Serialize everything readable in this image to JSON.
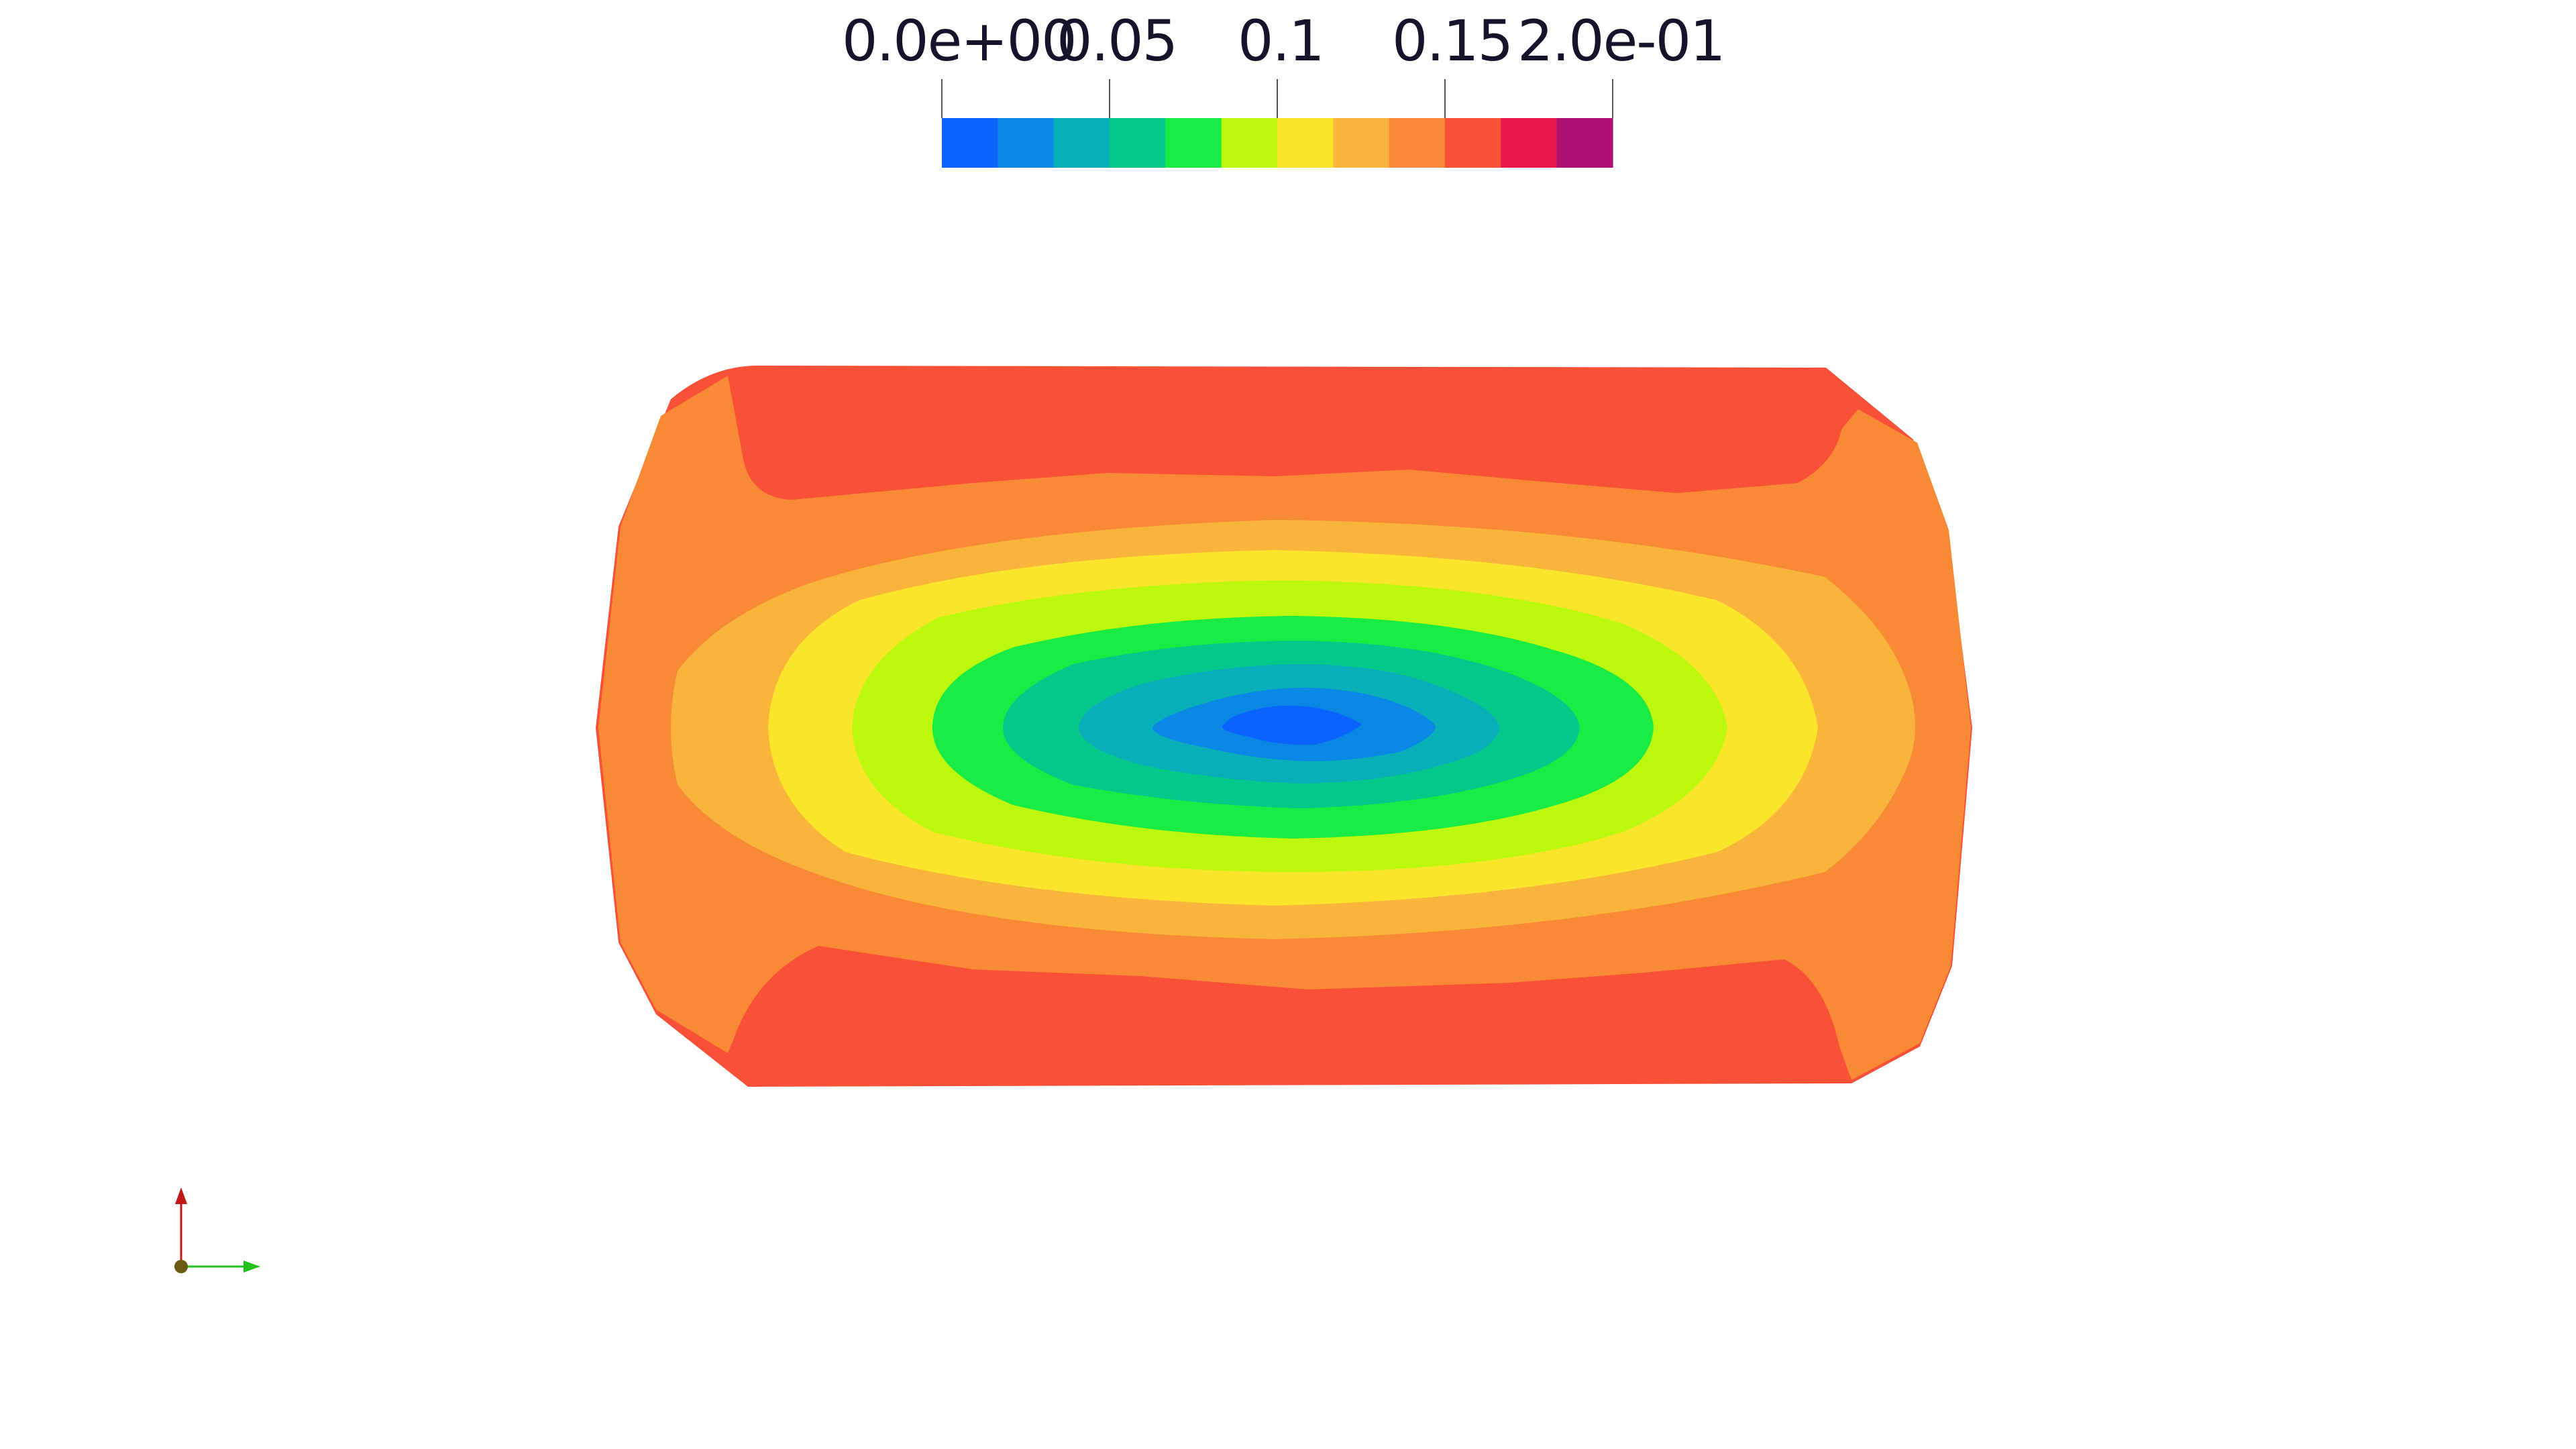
{
  "colorbar": {
    "tick_labels": [
      "0.0e+00",
      "0.05",
      "0.1",
      "0.15",
      "2.0e-01"
    ],
    "colors": [
      "#0a63ff",
      "#0a87e3",
      "#08aeb8",
      "#05c98a",
      "#17eb44",
      "#bcf70e",
      "#fbe52a",
      "#f8b43b",
      "#f88a36",
      "#f95138",
      "#e8194a",
      "#ad1070"
    ]
  },
  "field": {
    "contour_colors": [
      "#f95138",
      "#f88a36",
      "#f8b43b",
      "#fbe52a",
      "#bcf70e",
      "#17eb44",
      "#05c98a",
      "#08aeb8",
      "#0a87e3",
      "#0a63ff"
    ]
  },
  "axes": {
    "x_color": "#23c01e",
    "y_color": "#c21818",
    "origin_color": "#6b5a12"
  }
}
